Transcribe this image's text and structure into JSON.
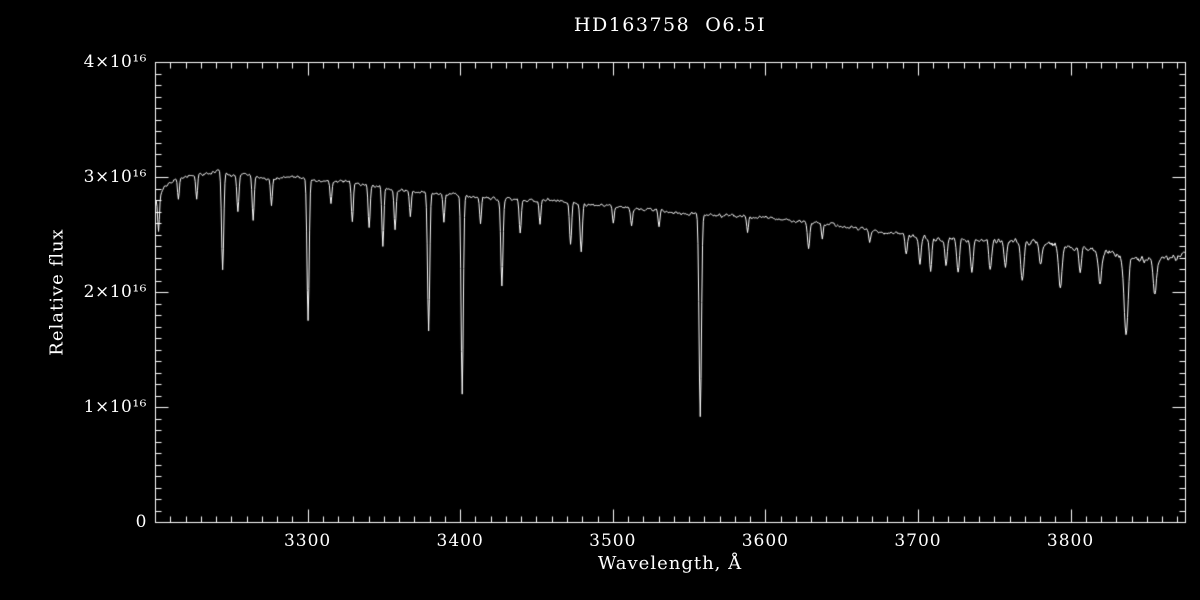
{
  "chart_data": {
    "type": "line",
    "title": "HD163758  O6.5I",
    "xlabel": "Wavelength, Å",
    "ylabel": "Relative flux",
    "background": "#000000",
    "axis_color": "#ffffff",
    "line_color": "#ffffff",
    "legend": "none",
    "grid": false,
    "xlim": [
      3200,
      3875
    ],
    "ylim": [
      0,
      4e+16
    ],
    "x_major_ticks": [
      3300,
      3400,
      3500,
      3600,
      3700,
      3800
    ],
    "x_tick_labels": [
      "3300",
      "3400",
      "3500",
      "3600",
      "3700",
      "3800"
    ],
    "x_minor_step": 10,
    "y_major_ticks": [
      0,
      1e+16,
      2e+16,
      3e+16,
      4e+16
    ],
    "y_tick_labels": [
      "0",
      "1×10¹⁶",
      "2×10¹⁶",
      "3×10¹⁶",
      "4×10¹⁶"
    ],
    "y_minor_step": 1000000000000000.0,
    "flux_unit": 1e+16,
    "noise_base": 0.022,
    "noise_slope": 0.00012,
    "noise_start": 3650,
    "continuum_1e16": [
      [
        3200,
        2.8
      ],
      [
        3206,
        2.92
      ],
      [
        3212,
        2.98
      ],
      [
        3222,
        3.01
      ],
      [
        3232,
        3.03
      ],
      [
        3242,
        3.06
      ],
      [
        3250,
        3.01
      ],
      [
        3258,
        3.03
      ],
      [
        3268,
        3.0
      ],
      [
        3278,
        2.98
      ],
      [
        3288,
        3.01
      ],
      [
        3298,
        2.99
      ],
      [
        3308,
        2.97
      ],
      [
        3318,
        2.97
      ],
      [
        3328,
        2.96
      ],
      [
        3338,
        2.94
      ],
      [
        3348,
        2.91
      ],
      [
        3358,
        2.89
      ],
      [
        3368,
        2.88
      ],
      [
        3378,
        2.87
      ],
      [
        3388,
        2.86
      ],
      [
        3398,
        2.85
      ],
      [
        3408,
        2.83
      ],
      [
        3418,
        2.82
      ],
      [
        3428,
        2.81
      ],
      [
        3438,
        2.8
      ],
      [
        3448,
        2.8
      ],
      [
        3458,
        2.8
      ],
      [
        3468,
        2.79
      ],
      [
        3478,
        2.77
      ],
      [
        3488,
        2.76
      ],
      [
        3498,
        2.76
      ],
      [
        3508,
        2.74
      ],
      [
        3518,
        2.72
      ],
      [
        3528,
        2.71
      ],
      [
        3538,
        2.7
      ],
      [
        3548,
        2.69
      ],
      [
        3558,
        2.68
      ],
      [
        3568,
        2.67
      ],
      [
        3578,
        2.67
      ],
      [
        3588,
        2.66
      ],
      [
        3598,
        2.65
      ],
      [
        3608,
        2.64
      ],
      [
        3618,
        2.62
      ],
      [
        3628,
        2.61
      ],
      [
        3638,
        2.6
      ],
      [
        3648,
        2.58
      ],
      [
        3658,
        2.56
      ],
      [
        3668,
        2.54
      ],
      [
        3678,
        2.52
      ],
      [
        3688,
        2.51
      ],
      [
        3698,
        2.49
      ],
      [
        3708,
        2.47
      ],
      [
        3718,
        2.46
      ],
      [
        3728,
        2.46
      ],
      [
        3738,
        2.46
      ],
      [
        3748,
        2.45
      ],
      [
        3758,
        2.44
      ],
      [
        3768,
        2.44
      ],
      [
        3778,
        2.43
      ],
      [
        3788,
        2.41
      ],
      [
        3798,
        2.4
      ],
      [
        3808,
        2.38
      ],
      [
        3818,
        2.36
      ],
      [
        3828,
        2.33
      ],
      [
        3838,
        2.3
      ],
      [
        3848,
        2.28
      ],
      [
        3858,
        2.29
      ],
      [
        3866,
        2.31
      ],
      [
        3875,
        2.32
      ]
    ],
    "absorption_lines_center_depth_sigma": [
      [
        3202,
        0.3,
        0.8
      ],
      [
        3215,
        0.18,
        0.8
      ],
      [
        3227,
        0.2,
        0.8
      ],
      [
        3244,
        0.86,
        1.0
      ],
      [
        3254,
        0.32,
        0.9
      ],
      [
        3264,
        0.38,
        0.9
      ],
      [
        3276,
        0.22,
        0.8
      ],
      [
        3300,
        1.22,
        1.0
      ],
      [
        3315,
        0.2,
        0.8
      ],
      [
        3329,
        0.35,
        0.9
      ],
      [
        3340,
        0.38,
        0.9
      ],
      [
        3349,
        0.5,
        0.9
      ],
      [
        3357,
        0.35,
        0.9
      ],
      [
        3367,
        0.22,
        0.8
      ],
      [
        3379,
        1.2,
        1.0
      ],
      [
        3389,
        0.25,
        0.8
      ],
      [
        3401,
        1.73,
        1.0
      ],
      [
        3413,
        0.22,
        0.8
      ],
      [
        3427,
        0.76,
        1.0
      ],
      [
        3439,
        0.28,
        0.9
      ],
      [
        3452,
        0.2,
        0.8
      ],
      [
        3472,
        0.38,
        1.0
      ],
      [
        3479,
        0.42,
        1.0
      ],
      [
        3500,
        0.15,
        0.8
      ],
      [
        3512,
        0.14,
        0.8
      ],
      [
        3530,
        0.12,
        0.8
      ],
      [
        3557,
        1.76,
        1.1
      ],
      [
        3588,
        0.12,
        0.8
      ],
      [
        3628,
        0.22,
        1.0
      ],
      [
        3637,
        0.14,
        0.8
      ],
      [
        3668,
        0.1,
        0.8
      ],
      [
        3692,
        0.18,
        1.0
      ],
      [
        3701,
        0.25,
        1.0
      ],
      [
        3708,
        0.28,
        1.0
      ],
      [
        3718,
        0.22,
        1.0
      ],
      [
        3726,
        0.3,
        1.2
      ],
      [
        3735,
        0.3,
        1.2
      ],
      [
        3747,
        0.28,
        1.2
      ],
      [
        3757,
        0.22,
        1.2
      ],
      [
        3768,
        0.35,
        1.4
      ],
      [
        3780,
        0.18,
        1.2
      ],
      [
        3793,
        0.38,
        1.5
      ],
      [
        3806,
        0.2,
        1.2
      ],
      [
        3819,
        0.3,
        1.5
      ],
      [
        3836,
        0.68,
        1.8
      ],
      [
        3855,
        0.3,
        1.5
      ]
    ]
  }
}
